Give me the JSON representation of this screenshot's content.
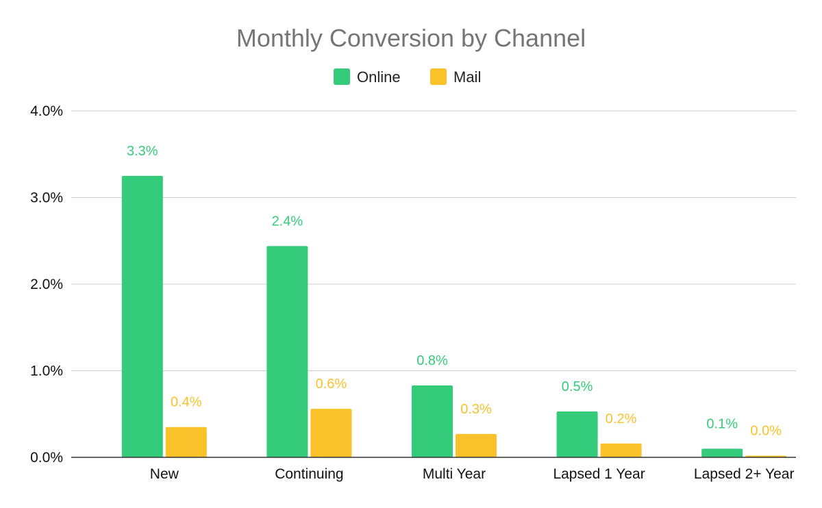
{
  "chart_data": {
    "type": "bar",
    "title": "Monthly Conversion by Channel",
    "xlabel": "",
    "ylabel": "",
    "categories": [
      "New",
      "Continuing",
      "Multi Year",
      "Lapsed 1 Year",
      "Lapsed 2+ Year"
    ],
    "series": [
      {
        "name": "Online",
        "color": "#34cc7a",
        "values": [
          3.25,
          2.44,
          0.83,
          0.53,
          0.1
        ],
        "labels": [
          "3.3%",
          "2.4%",
          "0.8%",
          "0.5%",
          "0.1%"
        ]
      },
      {
        "name": "Mail",
        "color": "#f9c22b",
        "values": [
          0.35,
          0.56,
          0.27,
          0.16,
          0.02
        ],
        "labels": [
          "0.4%",
          "0.6%",
          "0.3%",
          "0.2%",
          "0.0%"
        ]
      }
    ],
    "ylim": [
      0,
      4
    ],
    "yticks": [
      0,
      1,
      2,
      3,
      4
    ],
    "ytick_labels": [
      "0.0%",
      "1.0%",
      "2.0%",
      "3.0%",
      "4.0%"
    ],
    "grid": true,
    "legend_position": "top-center"
  }
}
